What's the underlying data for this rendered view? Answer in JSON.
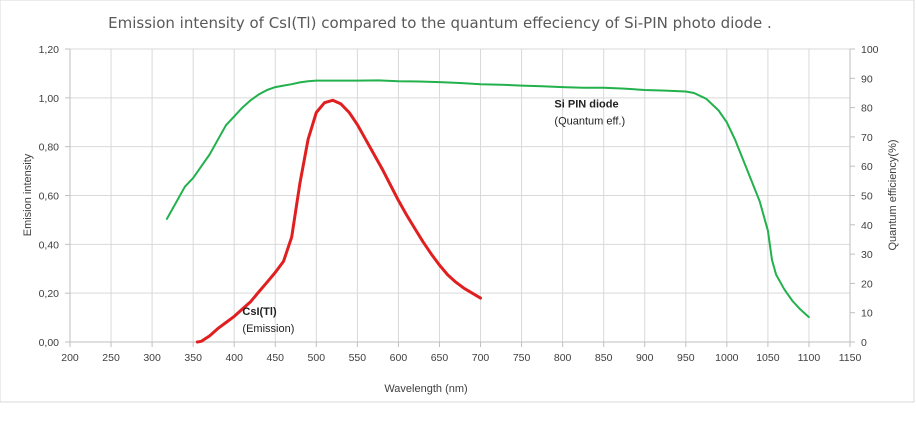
{
  "chart_data": {
    "type": "line",
    "title": "Emission intensity of CsI(Tl) compared to the  quantum effeciency of Si-PIN photo diode .",
    "xlabel": "Wavelength (nm)",
    "ylabel_left": "Emision intensity",
    "ylabel_right": "Quantum efficiency(%)",
    "xlim": [
      200,
      1150
    ],
    "ylim_left": [
      0,
      1.2
    ],
    "ylim_right": [
      0,
      100
    ],
    "grid": true,
    "x_ticks": [
      "200",
      "250",
      "300",
      "350",
      "400",
      "450",
      "500",
      "550",
      "600",
      "650",
      "700",
      "750",
      "800",
      "850",
      "900",
      "950",
      "1000",
      "1050",
      "1100",
      "1150"
    ],
    "y_left_ticks": [
      "0,00",
      "0,20",
      "0,40",
      "0,60",
      "0,80",
      "1,00",
      "1,20"
    ],
    "y_right_ticks": [
      "0",
      "10",
      "20",
      "30",
      "40",
      "50",
      "60",
      "70",
      "80",
      "90",
      "100"
    ],
    "series": [
      {
        "name": "Si PIN diode",
        "axis": "right",
        "color": "#22b14c",
        "points": [
          [
            318,
            42
          ],
          [
            330,
            48
          ],
          [
            340,
            53
          ],
          [
            350,
            56
          ],
          [
            360,
            60
          ],
          [
            370,
            64
          ],
          [
            380,
            69
          ],
          [
            390,
            74
          ],
          [
            400,
            77
          ],
          [
            410,
            80
          ],
          [
            420,
            82.5
          ],
          [
            430,
            84.5
          ],
          [
            440,
            86
          ],
          [
            450,
            87
          ],
          [
            460,
            87.5
          ],
          [
            470,
            88
          ],
          [
            480,
            88.6
          ],
          [
            490,
            89
          ],
          [
            500,
            89.2
          ],
          [
            525,
            89.2
          ],
          [
            550,
            89.2
          ],
          [
            575,
            89.3
          ],
          [
            600,
            89
          ],
          [
            625,
            88.9
          ],
          [
            650,
            88.7
          ],
          [
            675,
            88.4
          ],
          [
            700,
            88
          ],
          [
            725,
            87.8
          ],
          [
            750,
            87.5
          ],
          [
            775,
            87.3
          ],
          [
            800,
            87
          ],
          [
            825,
            86.8
          ],
          [
            850,
            86.8
          ],
          [
            875,
            86.5
          ],
          [
            900,
            86
          ],
          [
            925,
            85.8
          ],
          [
            950,
            85.5
          ],
          [
            960,
            85
          ],
          [
            975,
            83
          ],
          [
            990,
            79
          ],
          [
            1000,
            75
          ],
          [
            1010,
            69
          ],
          [
            1020,
            62
          ],
          [
            1030,
            55
          ],
          [
            1040,
            48
          ],
          [
            1050,
            38
          ],
          [
            1055,
            28
          ],
          [
            1060,
            23
          ],
          [
            1070,
            18
          ],
          [
            1080,
            14
          ],
          [
            1090,
            11
          ],
          [
            1100,
            8.5
          ]
        ]
      },
      {
        "name": "CsI(Tl)",
        "axis": "left",
        "color": "#e02020",
        "points": [
          [
            355,
            0
          ],
          [
            360,
            0.003
          ],
          [
            370,
            0.025
          ],
          [
            380,
            0.055
          ],
          [
            390,
            0.08
          ],
          [
            400,
            0.105
          ],
          [
            410,
            0.135
          ],
          [
            420,
            0.165
          ],
          [
            430,
            0.205
          ],
          [
            440,
            0.245
          ],
          [
            450,
            0.285
          ],
          [
            460,
            0.33
          ],
          [
            470,
            0.43
          ],
          [
            480,
            0.65
          ],
          [
            490,
            0.83
          ],
          [
            500,
            0.94
          ],
          [
            510,
            0.98
          ],
          [
            520,
            0.99
          ],
          [
            530,
            0.975
          ],
          [
            540,
            0.94
          ],
          [
            550,
            0.89
          ],
          [
            560,
            0.83
          ],
          [
            570,
            0.77
          ],
          [
            580,
            0.71
          ],
          [
            590,
            0.645
          ],
          [
            600,
            0.58
          ],
          [
            610,
            0.52
          ],
          [
            620,
            0.465
          ],
          [
            630,
            0.41
          ],
          [
            640,
            0.36
          ],
          [
            650,
            0.315
          ],
          [
            660,
            0.275
          ],
          [
            670,
            0.245
          ],
          [
            680,
            0.22
          ],
          [
            690,
            0.2
          ],
          [
            700,
            0.18
          ]
        ]
      }
    ],
    "annotations": [
      {
        "bold": "CsI(Tl)",
        "text": "(Emission)",
        "x": 410,
        "y": 0.11
      },
      {
        "bold": "Si PIN diode",
        "text": "(Quantum eff.)",
        "x": 790,
        "y": 0.96
      }
    ]
  }
}
